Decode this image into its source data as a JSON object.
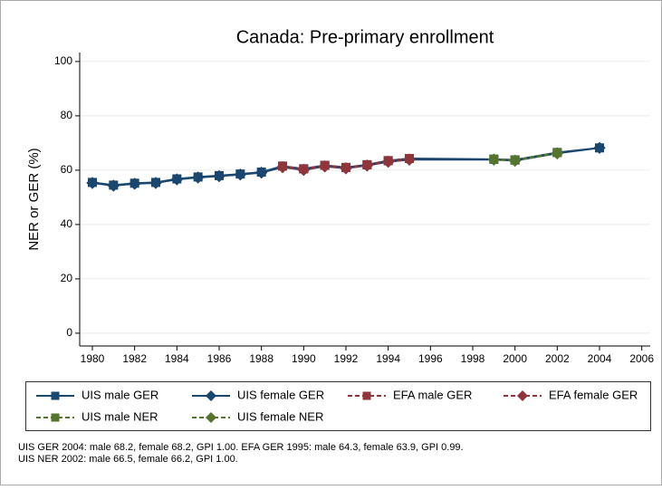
{
  "chart_data": {
    "type": "line",
    "title": "Canada: Pre-primary enrollment",
    "ylabel": "NER or GER (%)",
    "x": [
      1980,
      1981,
      1982,
      1983,
      1984,
      1985,
      1986,
      1987,
      1988,
      1989,
      1990,
      1991,
      1992,
      1993,
      1994,
      1995,
      1999,
      2000,
      2002,
      2004
    ],
    "series": [
      {
        "name": "UIS male GER",
        "color": "#1a476f",
        "marker": "square",
        "dashed": false,
        "values": [
          55.5,
          54.5,
          55.2,
          55.5,
          56.8,
          57.5,
          58.0,
          58.6,
          59.3,
          61.5,
          60.5,
          61.8,
          61.0,
          62.0,
          63.5,
          64.3,
          64.0,
          63.8,
          66.5,
          68.2
        ]
      },
      {
        "name": "UIS female GER",
        "color": "#1a476f",
        "marker": "diamond",
        "dashed": false,
        "values": [
          55.3,
          54.3,
          55.0,
          55.3,
          56.6,
          57.3,
          57.8,
          58.4,
          59.1,
          61.1,
          60.1,
          61.4,
          60.7,
          61.7,
          63.1,
          63.9,
          63.9,
          63.5,
          66.2,
          68.2
        ]
      },
      {
        "name": "EFA male GER",
        "color": "#90353b",
        "marker": "square",
        "dashed": true,
        "values": [
          null,
          null,
          null,
          null,
          null,
          null,
          null,
          null,
          null,
          61.5,
          60.5,
          61.8,
          61.0,
          62.0,
          63.5,
          64.3,
          null,
          null,
          null,
          null
        ]
      },
      {
        "name": "EFA female GER",
        "color": "#90353b",
        "marker": "diamond",
        "dashed": true,
        "values": [
          null,
          null,
          null,
          null,
          null,
          null,
          null,
          null,
          null,
          61.1,
          60.1,
          61.4,
          60.7,
          61.7,
          63.1,
          63.9,
          null,
          null,
          null,
          null
        ]
      },
      {
        "name": "UIS male NER",
        "color": "#55752f",
        "marker": "square",
        "dashed": true,
        "values": [
          null,
          null,
          null,
          null,
          null,
          null,
          null,
          null,
          null,
          null,
          null,
          null,
          null,
          null,
          null,
          null,
          64.1,
          63.7,
          66.5,
          null
        ]
      },
      {
        "name": "UIS female NER",
        "color": "#55752f",
        "marker": "diamond",
        "dashed": true,
        "values": [
          null,
          null,
          null,
          null,
          null,
          null,
          null,
          null,
          null,
          null,
          null,
          null,
          null,
          null,
          null,
          null,
          63.9,
          63.5,
          66.2,
          null
        ]
      }
    ],
    "xlim": [
      1979.4,
      2006.4
    ],
    "xticks": [
      1980,
      1982,
      1984,
      1986,
      1988,
      1990,
      1992,
      1994,
      1996,
      1998,
      2000,
      2002,
      2004,
      2006
    ],
    "ylim": [
      -4.7,
      103.3
    ],
    "yticks": [
      0,
      20,
      40,
      60,
      80,
      100
    ],
    "grid": true,
    "legend": "bottom",
    "notes": [
      "UIS GER 2004: male 68.2, female 68.2, GPI 1.00. EFA GER 1995: male 64.3, female 63.9, GPI 0.99.",
      "UIS NER 2002: male 66.5, female 66.2, GPI 1.00."
    ]
  }
}
